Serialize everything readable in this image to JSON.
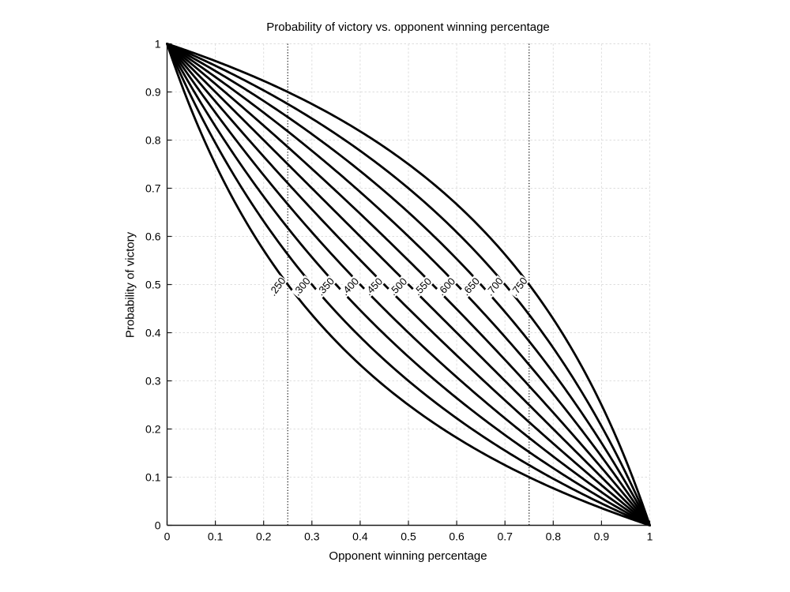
{
  "figure": {
    "title": "Probability of victory vs. opponent winning percentage",
    "xlabel": "Opponent winning percentage",
    "ylabel": "Probability of victory"
  },
  "chart_data": {
    "type": "line",
    "title": "Probability of victory vs. opponent winning percentage",
    "xlabel": "Opponent winning percentage",
    "ylabel": "Probability of victory",
    "xlim": [
      0,
      1
    ],
    "ylim": [
      0,
      1
    ],
    "x_ticks": [
      "0",
      "0.1",
      "0.2",
      "0.3",
      "0.4",
      "0.5",
      "0.6",
      "0.7",
      "0.8",
      "0.9",
      "1"
    ],
    "y_ticks": [
      "0",
      "0.1",
      "0.2",
      "0.3",
      "0.4",
      "0.5",
      "0.6",
      "0.7",
      "0.8",
      "0.9",
      "1"
    ],
    "grid": "on",
    "grid_style": "light gray dashed lines at 0.1 intervals",
    "legend_position": "none (inline curve labels)",
    "formula": "y = p*(1-x) / (p*(1-x) + x*(1-p))  [log5 matchup formula; every curve passes through (0,1) and (1,0)]",
    "reference_lines": [
      {
        "axis": "x",
        "value": 0.25,
        "style": "dotted",
        "color": "#000000"
      },
      {
        "axis": "x",
        "value": 0.75,
        "style": "dotted",
        "color": "#000000"
      }
    ],
    "sample_x": [
      0,
      0.25,
      0.5,
      0.75,
      1
    ],
    "series": [
      {
        "label": ".250",
        "p": 0.25,
        "y_at_sample_x": [
          1,
          0.5,
          0.25,
          0.1,
          0
        ]
      },
      {
        "label": ".300",
        "p": 0.3,
        "y_at_sample_x": [
          1,
          0.5625,
          0.3,
          0.125,
          0
        ]
      },
      {
        "label": ".350",
        "p": 0.35,
        "y_at_sample_x": [
          1,
          0.6176,
          0.35,
          0.1522,
          0
        ]
      },
      {
        "label": ".400",
        "p": 0.4,
        "y_at_sample_x": [
          1,
          0.6667,
          0.4,
          0.1818,
          0
        ]
      },
      {
        "label": ".450",
        "p": 0.45,
        "y_at_sample_x": [
          1,
          0.7105,
          0.45,
          0.2143,
          0
        ]
      },
      {
        "label": ".500",
        "p": 0.5,
        "y_at_sample_x": [
          1,
          0.75,
          0.5,
          0.25,
          0
        ]
      },
      {
        "label": ".550",
        "p": 0.55,
        "y_at_sample_x": [
          1,
          0.7857,
          0.55,
          0.2895,
          0
        ]
      },
      {
        "label": ".600",
        "p": 0.6,
        "y_at_sample_x": [
          1,
          0.8182,
          0.6,
          0.3333,
          0
        ]
      },
      {
        "label": ".650",
        "p": 0.65,
        "y_at_sample_x": [
          1,
          0.8478,
          0.65,
          0.3824,
          0
        ]
      },
      {
        "label": ".700",
        "p": 0.7,
        "y_at_sample_x": [
          1,
          0.875,
          0.7,
          0.4375,
          0
        ]
      },
      {
        "label": ".750",
        "p": 0.75,
        "y_at_sample_x": [
          1,
          0.9,
          0.75,
          0.5,
          0
        ]
      }
    ],
    "colors": {
      "curve": "#000000",
      "grid": "#dedede",
      "axis": "#1a1a1a",
      "text": "#000000",
      "background": "#ffffff"
    }
  }
}
